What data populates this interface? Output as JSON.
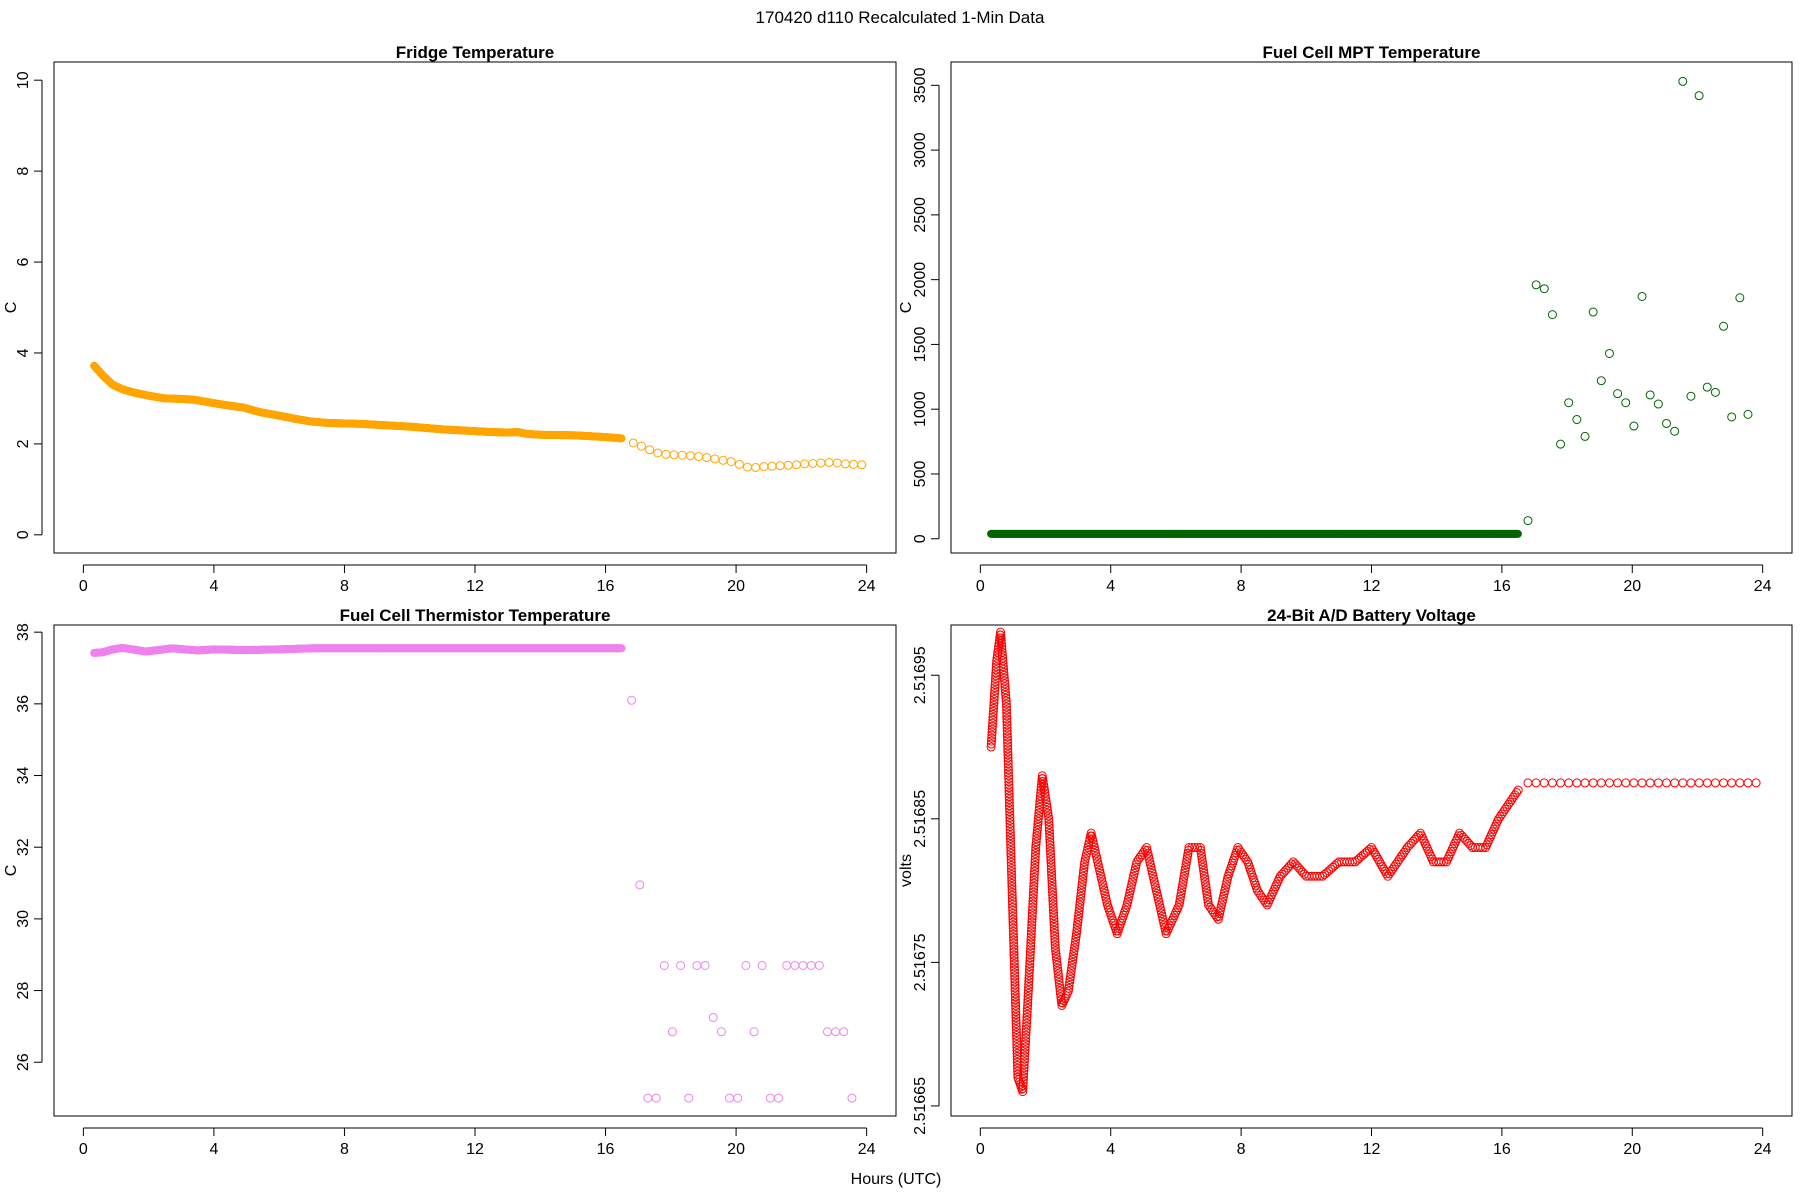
{
  "figure": {
    "title": "170420   d110   Recalculated 1-Min Data",
    "xlabel": "Hours (UTC)"
  },
  "colors": {
    "fridge": "#FFA500",
    "mpt": "#006400",
    "thermistor": "#EE82EE",
    "battery": "#FF0000",
    "axis": "#000000"
  },
  "chart_data": [
    {
      "id": "fridge",
      "type": "scatter",
      "title": "Fridge Temperature",
      "xlabel": "",
      "ylabel": "C",
      "xlim": [
        -0.9,
        24.9
      ],
      "ylim": [
        -0.4,
        10.4
      ],
      "xticks": [
        0,
        4,
        8,
        12,
        16,
        20,
        24
      ],
      "yticks": [
        0,
        2,
        4,
        6,
        8,
        10
      ],
      "series": [
        {
          "name": "dense",
          "style": "dense",
          "x_range": [
            0.33,
            16.5
          ],
          "points": [
            [
              0.33,
              3.72
            ],
            [
              0.6,
              3.5
            ],
            [
              0.9,
              3.3
            ],
            [
              1.2,
              3.2
            ],
            [
              1.6,
              3.12
            ],
            [
              2.0,
              3.06
            ],
            [
              2.5,
              3.0
            ],
            [
              3.0,
              2.99
            ],
            [
              3.4,
              2.97
            ],
            [
              3.8,
              2.92
            ],
            [
              4.3,
              2.86
            ],
            [
              4.9,
              2.8
            ],
            [
              5.4,
              2.7
            ],
            [
              6.0,
              2.62
            ],
            [
              6.5,
              2.55
            ],
            [
              7.0,
              2.49
            ],
            [
              7.5,
              2.46
            ],
            [
              8.0,
              2.45
            ],
            [
              8.5,
              2.44
            ],
            [
              9.0,
              2.42
            ],
            [
              9.5,
              2.4
            ],
            [
              10.0,
              2.38
            ],
            [
              10.5,
              2.35
            ],
            [
              11.0,
              2.32
            ],
            [
              11.5,
              2.3
            ],
            [
              12.0,
              2.28
            ],
            [
              12.5,
              2.26
            ],
            [
              13.0,
              2.25
            ],
            [
              13.3,
              2.26
            ],
            [
              13.6,
              2.22
            ],
            [
              14.0,
              2.2
            ],
            [
              15.0,
              2.19
            ],
            [
              16.0,
              2.15
            ],
            [
              16.5,
              2.12
            ]
          ]
        },
        {
          "name": "sparse",
          "style": "open",
          "points": [
            [
              16.85,
              2.02
            ],
            [
              17.1,
              1.95
            ],
            [
              17.35,
              1.87
            ],
            [
              17.6,
              1.8
            ],
            [
              17.85,
              1.77
            ],
            [
              18.1,
              1.76
            ],
            [
              18.35,
              1.75
            ],
            [
              18.6,
              1.74
            ],
            [
              18.85,
              1.72
            ],
            [
              19.1,
              1.7
            ],
            [
              19.35,
              1.67
            ],
            [
              19.6,
              1.64
            ],
            [
              19.85,
              1.61
            ],
            [
              20.1,
              1.55
            ],
            [
              20.35,
              1.49
            ],
            [
              20.6,
              1.48
            ],
            [
              20.85,
              1.5
            ],
            [
              21.1,
              1.51
            ],
            [
              21.35,
              1.52
            ],
            [
              21.6,
              1.53
            ],
            [
              21.85,
              1.54
            ],
            [
              22.1,
              1.56
            ],
            [
              22.35,
              1.57
            ],
            [
              22.6,
              1.58
            ],
            [
              22.85,
              1.59
            ],
            [
              23.1,
              1.58
            ],
            [
              23.35,
              1.56
            ],
            [
              23.6,
              1.55
            ],
            [
              23.85,
              1.54
            ]
          ]
        }
      ]
    },
    {
      "id": "mpt",
      "type": "scatter",
      "title": "Fuel Cell MPT Temperature",
      "xlabel": "",
      "ylabel": "C",
      "xlim": [
        -0.9,
        24.9
      ],
      "ylim": [
        -110,
        3680
      ],
      "xticks": [
        0,
        4,
        8,
        12,
        16,
        20,
        24
      ],
      "yticks": [
        0,
        500,
        1000,
        1500,
        2000,
        2500,
        3000,
        3500
      ],
      "series": [
        {
          "name": "dense",
          "style": "dense",
          "x_range": [
            0.33,
            16.5
          ],
          "points": [
            [
              0.33,
              38
            ],
            [
              16.5,
              38
            ]
          ]
        },
        {
          "name": "sparse",
          "style": "open",
          "points": [
            [
              16.8,
              140
            ],
            [
              17.05,
              1960
            ],
            [
              17.3,
              1930
            ],
            [
              17.55,
              1730
            ],
            [
              17.8,
              730
            ],
            [
              18.05,
              1050
            ],
            [
              18.3,
              920
            ],
            [
              18.55,
              790
            ],
            [
              18.8,
              1750
            ],
            [
              19.05,
              1220
            ],
            [
              19.3,
              1430
            ],
            [
              19.55,
              1120
            ],
            [
              19.8,
              1050
            ],
            [
              20.05,
              870
            ],
            [
              20.3,
              1870
            ],
            [
              20.55,
              1110
            ],
            [
              20.8,
              1040
            ],
            [
              21.05,
              890
            ],
            [
              21.3,
              830
            ],
            [
              21.55,
              3530
            ],
            [
              21.8,
              1100
            ],
            [
              22.05,
              3420
            ],
            [
              22.3,
              1170
            ],
            [
              22.55,
              1130
            ],
            [
              22.8,
              1640
            ],
            [
              23.05,
              940
            ],
            [
              23.3,
              1860
            ],
            [
              23.55,
              960
            ]
          ]
        }
      ]
    },
    {
      "id": "thermistor",
      "type": "scatter",
      "title": "Fuel Cell Thermistor Temperature",
      "xlabel": "",
      "ylabel": "C",
      "xlim": [
        -0.9,
        24.9
      ],
      "ylim": [
        24.5,
        38.2
      ],
      "xticks": [
        0,
        4,
        8,
        12,
        16,
        20,
        24
      ],
      "yticks": [
        26,
        28,
        30,
        32,
        34,
        36,
        38
      ],
      "series": [
        {
          "name": "dense",
          "style": "dense",
          "x_range": [
            0.33,
            16.5
          ],
          "points": [
            [
              0.33,
              37.42
            ],
            [
              0.6,
              37.44
            ],
            [
              0.9,
              37.52
            ],
            [
              1.2,
              37.56
            ],
            [
              1.5,
              37.52
            ],
            [
              1.9,
              37.46
            ],
            [
              2.3,
              37.5
            ],
            [
              2.7,
              37.55
            ],
            [
              3.1,
              37.52
            ],
            [
              3.5,
              37.49
            ],
            [
              4.0,
              37.52
            ],
            [
              5.0,
              37.5
            ],
            [
              6.0,
              37.52
            ],
            [
              7.0,
              37.55
            ],
            [
              8.0,
              37.55
            ],
            [
              16.5,
              37.55
            ]
          ]
        },
        {
          "name": "sparse",
          "style": "open",
          "points": [
            [
              16.8,
              36.1
            ],
            [
              17.05,
              30.95
            ],
            [
              17.3,
              25.0
            ],
            [
              17.55,
              25.0
            ],
            [
              17.8,
              28.7
            ],
            [
              18.05,
              26.85
            ],
            [
              18.3,
              28.7
            ],
            [
              18.55,
              25.0
            ],
            [
              18.8,
              28.7
            ],
            [
              19.05,
              28.7
            ],
            [
              19.3,
              27.25
            ],
            [
              19.55,
              26.85
            ],
            [
              19.8,
              25.0
            ],
            [
              20.05,
              25.0
            ],
            [
              20.3,
              28.7
            ],
            [
              20.55,
              26.85
            ],
            [
              20.8,
              28.7
            ],
            [
              21.05,
              25.0
            ],
            [
              21.3,
              25.0
            ],
            [
              21.55,
              28.7
            ],
            [
              21.8,
              28.7
            ],
            [
              22.05,
              28.7
            ],
            [
              22.3,
              28.7
            ],
            [
              22.55,
              28.7
            ],
            [
              22.8,
              26.85
            ],
            [
              23.05,
              26.85
            ],
            [
              23.3,
              26.85
            ],
            [
              23.55,
              25.0
            ]
          ]
        }
      ]
    },
    {
      "id": "battery",
      "type": "scatter",
      "title": "24-Bit A/D Battery Voltage",
      "xlabel": "",
      "ylabel": "volts",
      "xlim": [
        -0.9,
        24.9
      ],
      "ylim": [
        2.516643,
        2.516985
      ],
      "xticks": [
        0,
        4,
        8,
        12,
        16,
        20,
        24
      ],
      "yticks": [
        2.51665,
        2.51675,
        2.51685,
        2.51695
      ],
      "ytick_labels": [
        "2.51665",
        "2.51675",
        "2.51685",
        "2.51695"
      ],
      "series": [
        {
          "name": "dense",
          "style": "open-dense",
          "x_range": [
            0.33,
            16.5
          ],
          "points": [
            [
              0.33,
              2.5169
            ],
            [
              0.5,
              2.51696
            ],
            [
              0.62,
              2.51698
            ],
            [
              0.8,
              2.51693
            ],
            [
              1.0,
              2.51678
            ],
            [
              1.15,
              2.51667
            ],
            [
              1.3,
              2.51666
            ],
            [
              1.45,
              2.51672
            ],
            [
              1.7,
              2.51683
            ],
            [
              1.9,
              2.51688
            ],
            [
              2.1,
              2.51685
            ],
            [
              2.3,
              2.51676
            ],
            [
              2.5,
              2.51672
            ],
            [
              2.7,
              2.51673
            ],
            [
              2.95,
              2.51677
            ],
            [
              3.2,
              2.51682
            ],
            [
              3.4,
              2.51684
            ],
            [
              3.6,
              2.51682
            ],
            [
              3.9,
              2.51679
            ],
            [
              4.2,
              2.51677
            ],
            [
              4.5,
              2.51679
            ],
            [
              4.8,
              2.51682
            ],
            [
              5.1,
              2.51683
            ],
            [
              5.4,
              2.5168
            ],
            [
              5.7,
              2.51677
            ],
            [
              6.1,
              2.51679
            ],
            [
              6.4,
              2.51683
            ],
            [
              6.75,
              2.51683
            ],
            [
              7.0,
              2.51679
            ],
            [
              7.3,
              2.51678
            ],
            [
              7.6,
              2.51681
            ],
            [
              7.9,
              2.51683
            ],
            [
              8.2,
              2.51682
            ],
            [
              8.5,
              2.5168
            ],
            [
              8.8,
              2.51679
            ],
            [
              9.2,
              2.51681
            ],
            [
              9.6,
              2.51682
            ],
            [
              10.0,
              2.51681
            ],
            [
              10.5,
              2.51681
            ],
            [
              11.0,
              2.51682
            ],
            [
              11.5,
              2.51682
            ],
            [
              12.0,
              2.51683
            ],
            [
              12.5,
              2.51681
            ],
            [
              12.8,
              2.51682
            ],
            [
              13.1,
              2.51683
            ],
            [
              13.5,
              2.51684
            ],
            [
              13.9,
              2.51682
            ],
            [
              14.3,
              2.51682
            ],
            [
              14.7,
              2.51684
            ],
            [
              15.1,
              2.51683
            ],
            [
              15.5,
              2.51683
            ],
            [
              15.9,
              2.51685
            ],
            [
              16.2,
              2.51686
            ],
            [
              16.5,
              2.51687
            ]
          ]
        },
        {
          "name": "sparse",
          "style": "open",
          "points": [
            [
              16.8,
              2.516875
            ],
            [
              17.05,
              2.516875
            ],
            [
              17.3,
              2.516875
            ],
            [
              17.55,
              2.516875
            ],
            [
              17.8,
              2.516875
            ],
            [
              18.05,
              2.516875
            ],
            [
              18.3,
              2.516875
            ],
            [
              18.55,
              2.516875
            ],
            [
              18.8,
              2.516875
            ],
            [
              19.05,
              2.516875
            ],
            [
              19.3,
              2.516875
            ],
            [
              19.55,
              2.516875
            ],
            [
              19.8,
              2.516875
            ],
            [
              20.05,
              2.516875
            ],
            [
              20.3,
              2.516875
            ],
            [
              20.55,
              2.516875
            ],
            [
              20.8,
              2.516875
            ],
            [
              21.05,
              2.516875
            ],
            [
              21.3,
              2.516875
            ],
            [
              21.55,
              2.516875
            ],
            [
              21.8,
              2.516875
            ],
            [
              22.05,
              2.516875
            ],
            [
              22.3,
              2.516875
            ],
            [
              22.55,
              2.516875
            ],
            [
              22.8,
              2.516875
            ],
            [
              23.05,
              2.516875
            ],
            [
              23.3,
              2.516875
            ],
            [
              23.55,
              2.516875
            ],
            [
              23.8,
              2.516875
            ]
          ]
        }
      ]
    }
  ]
}
